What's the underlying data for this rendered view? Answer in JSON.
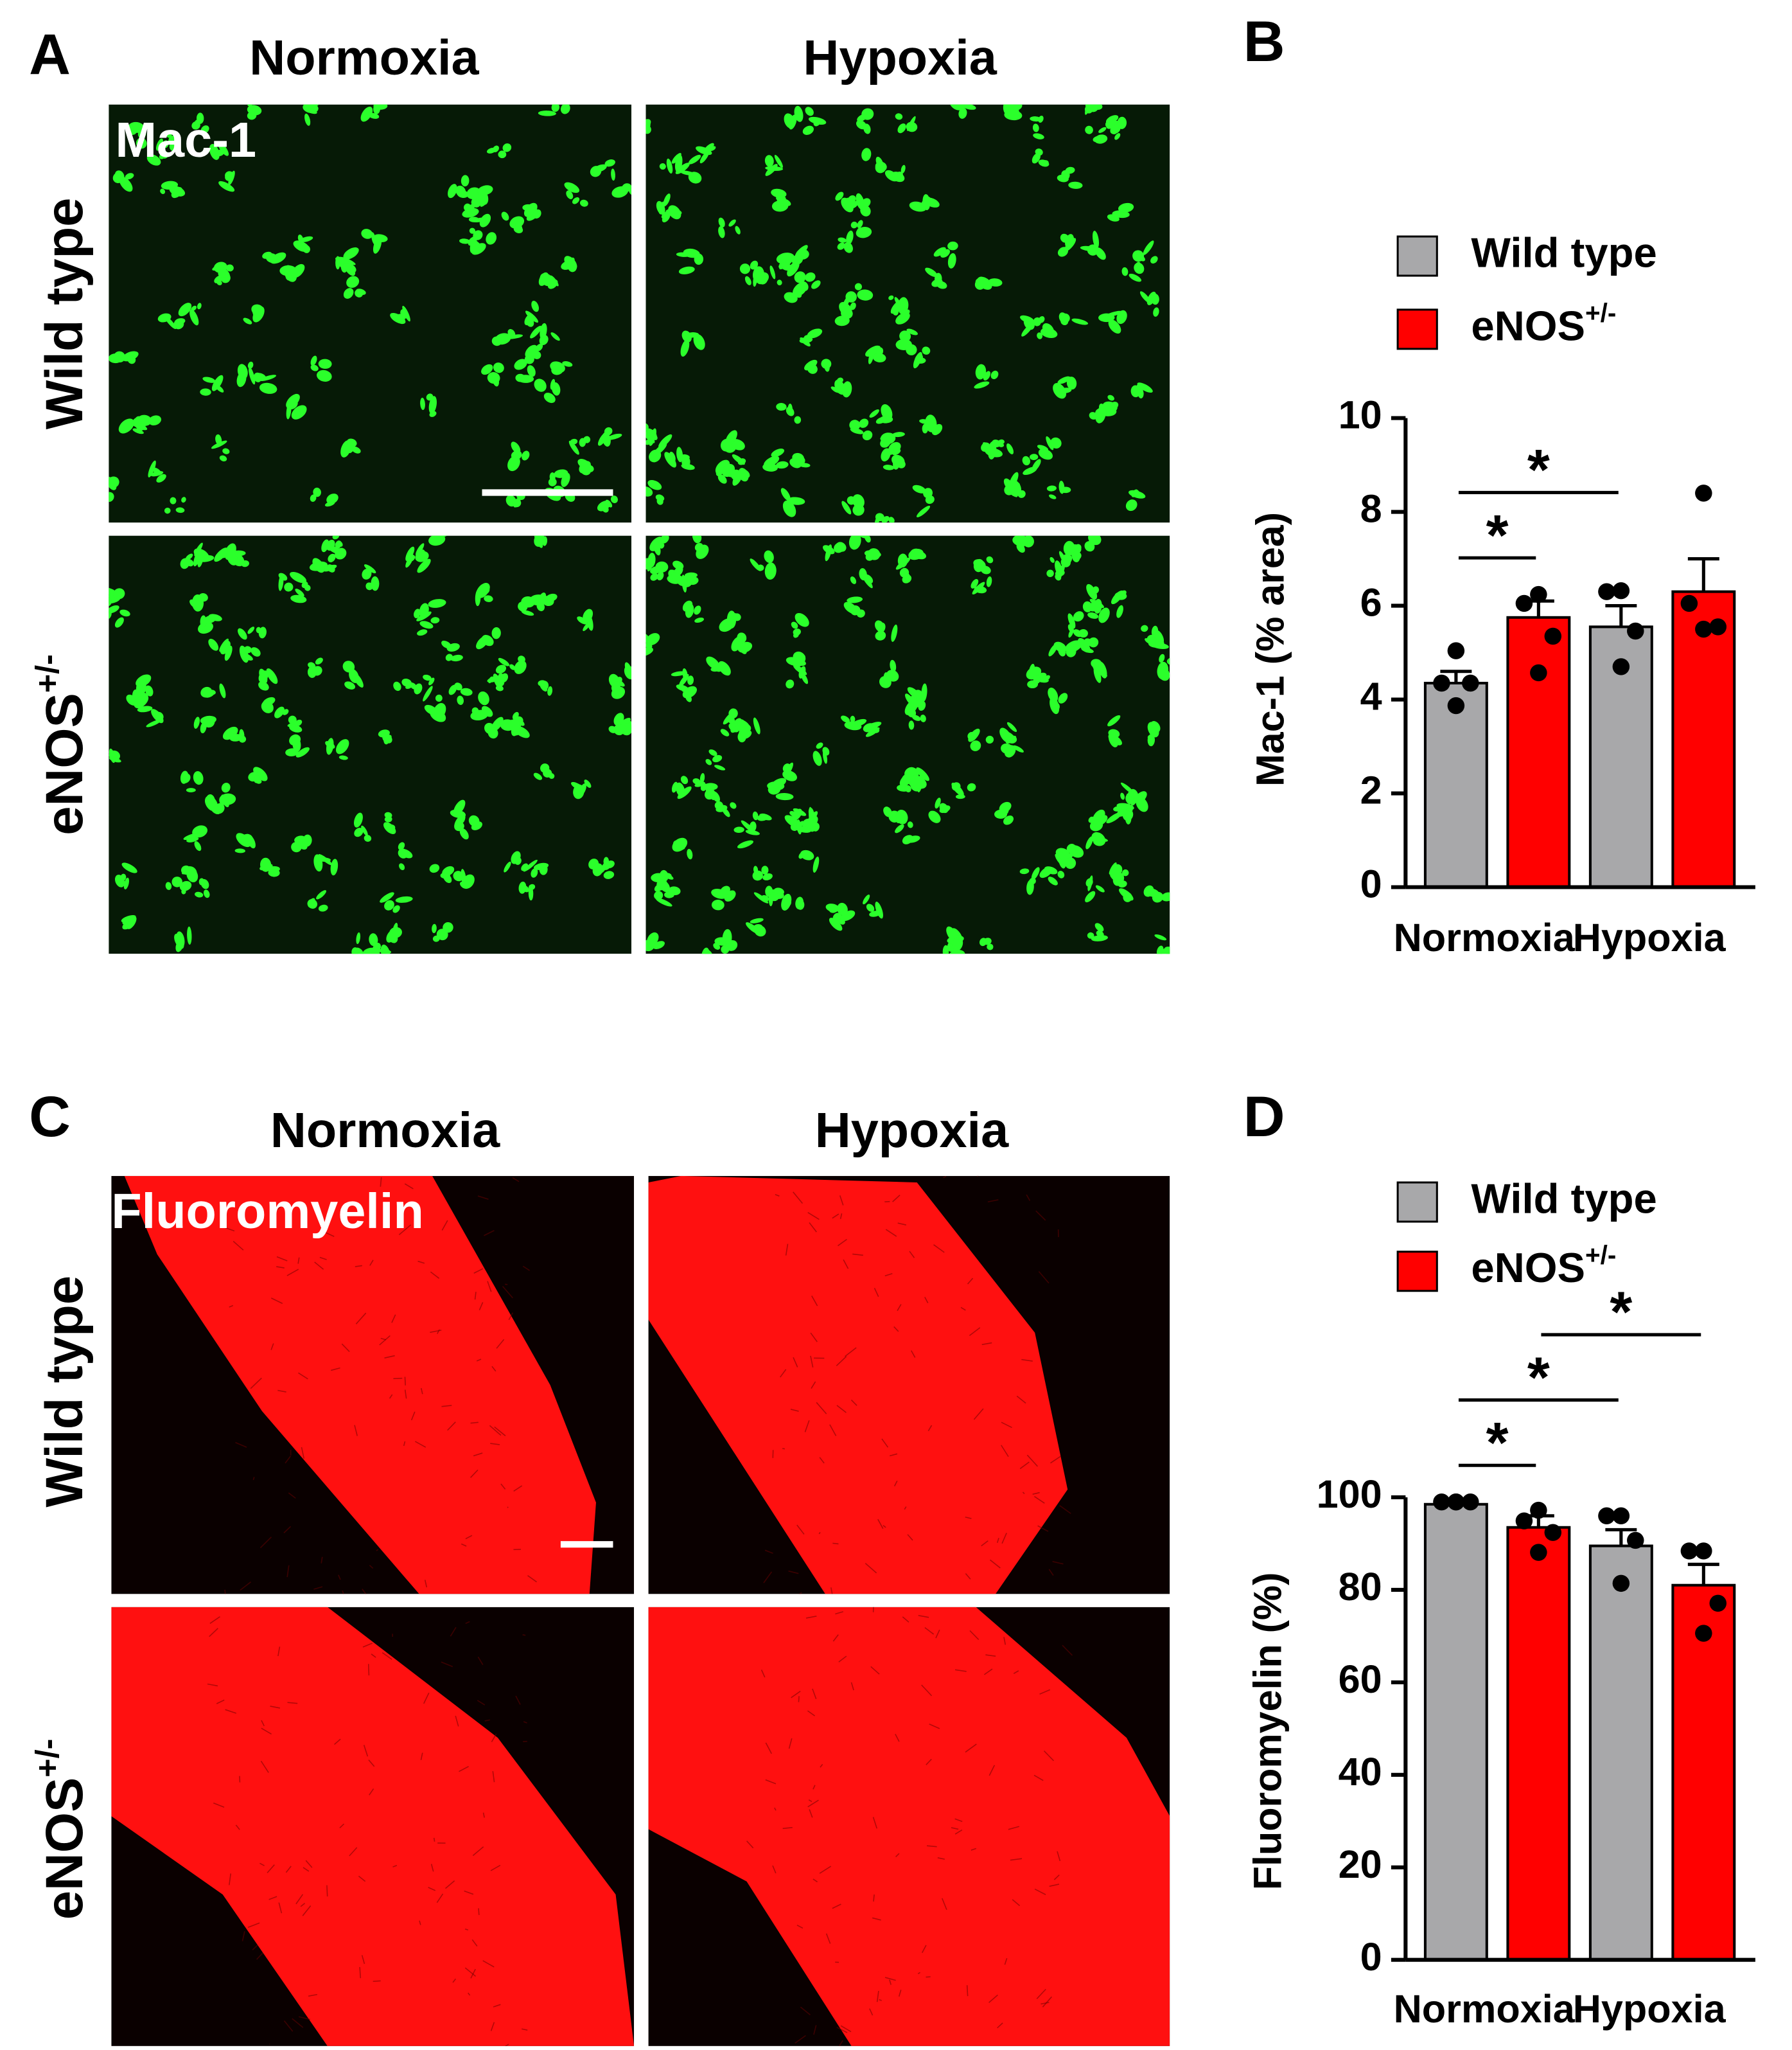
{
  "panels": [
    {
      "label": "A",
      "stain": "Mac-1",
      "columns": [
        "Normoxia",
        "Hypoxia"
      ],
      "rows": [
        {
          "label": "Wild type"
        },
        {
          "label": "eNOS",
          "superscript": "+/-"
        }
      ]
    },
    {
      "label": "C",
      "stain": "Fluoromyelin",
      "columns": [
        "Normoxia",
        "Hypoxia"
      ],
      "rows": [
        {
          "label": "Wild type"
        },
        {
          "label": "eNOS",
          "superscript": "+/-"
        }
      ]
    }
  ],
  "chart_data": [
    {
      "type": "bar",
      "panel": "B",
      "ylabel": "Mac-1 (% area)",
      "categories": [
        "Normoxia",
        "Hypoxia"
      ],
      "series": [
        {
          "name": "Wild type",
          "color": "#a8a8aa",
          "values": [
            4.35,
            5.55
          ],
          "errors": [
            0.25,
            0.45
          ],
          "points": [
            [
              5.04,
              4.35,
              4.35,
              3.87
            ],
            [
              6.32,
              6.3,
              5.46,
              4.7
            ]
          ]
        },
        {
          "name": "eNOS",
          "superscript": "+/-",
          "color": "#ff0000",
          "values": [
            5.75,
            6.3
          ],
          "errors": [
            0.35,
            0.7
          ],
          "points": [
            [
              6.24,
              6.05,
              5.35,
              4.57
            ],
            [
              8.4,
              6.05,
              5.55,
              5.5
            ]
          ]
        }
      ],
      "ylim": [
        0,
        10
      ],
      "yticks": [
        0,
        2,
        4,
        6,
        8,
        10
      ],
      "comparisons": [
        {
          "from": [
            0,
            0
          ],
          "to": [
            1,
            0
          ],
          "label": "*"
        },
        {
          "from": [
            0,
            0
          ],
          "to": [
            0,
            1
          ],
          "label": "*"
        }
      ]
    },
    {
      "type": "bar",
      "panel": "D",
      "ylabel": "Fluoromyelin (%)",
      "categories": [
        "Normoxia",
        "Hypoxia"
      ],
      "series": [
        {
          "name": "Wild type",
          "color": "#a8a8aa",
          "values": [
            98.5,
            89.5
          ],
          "errors": [
            0.3,
            3.5
          ],
          "points": [
            [
              99,
              99,
              99,
              99
            ],
            [
              96,
              96,
              90.7,
              81.4
            ]
          ]
        },
        {
          "name": "eNOS",
          "superscript": "+/-",
          "color": "#ff0000",
          "values": [
            93.5,
            81
          ],
          "errors": [
            2.5,
            4.5
          ],
          "points": [
            [
              97.2,
              94.9,
              92.4,
              88.1
            ],
            [
              88.4,
              88.4,
              77.1,
              70.6
            ]
          ]
        }
      ],
      "ylim": [
        0,
        100
      ],
      "yticks": [
        0,
        20,
        40,
        60,
        80,
        100
      ],
      "comparisons": [
        {
          "from": [
            0,
            0
          ],
          "to": [
            1,
            0
          ],
          "label": "*"
        },
        {
          "from": [
            0,
            0
          ],
          "to": [
            0,
            1
          ],
          "label": "*"
        },
        {
          "from": [
            1,
            0
          ],
          "to": [
            1,
            1
          ],
          "label": "*"
        }
      ]
    }
  ]
}
